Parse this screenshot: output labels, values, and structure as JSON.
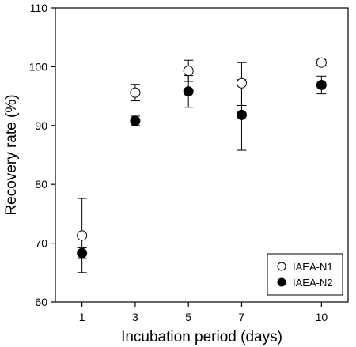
{
  "chart_data": {
    "type": "scatter",
    "xlabel": "Incubation period (days)",
    "ylabel": "Recovery rate (%)",
    "x_ticks": [
      1,
      3,
      5,
      7,
      10
    ],
    "x_range": [
      0,
      11
    ],
    "ylim": [
      60,
      110
    ],
    "y_ticks": [
      60,
      70,
      80,
      90,
      100,
      110
    ],
    "grid": false,
    "legend_position": "bottom-right",
    "series": [
      {
        "name": "IAEA-N1",
        "marker": "open-circle",
        "x": [
          1,
          3,
          5,
          7,
          10
        ],
        "y": [
          71.3,
          95.6,
          99.3,
          97.2,
          100.7
        ],
        "err_low": [
          65.0,
          94.2,
          97.5,
          93.4,
          100.2
        ],
        "err_high": [
          77.6,
          97.0,
          101.1,
          100.7,
          101.2
        ]
      },
      {
        "name": "IAEA-N2",
        "marker": "filled-circle",
        "x": [
          1,
          3,
          5,
          7,
          10
        ],
        "y": [
          68.3,
          90.8,
          95.8,
          91.8,
          96.9
        ],
        "err_low": [
          67.4,
          90.0,
          93.1,
          85.8,
          95.4
        ],
        "err_high": [
          69.2,
          91.6,
          98.5,
          97.8,
          98.4
        ]
      }
    ]
  }
}
